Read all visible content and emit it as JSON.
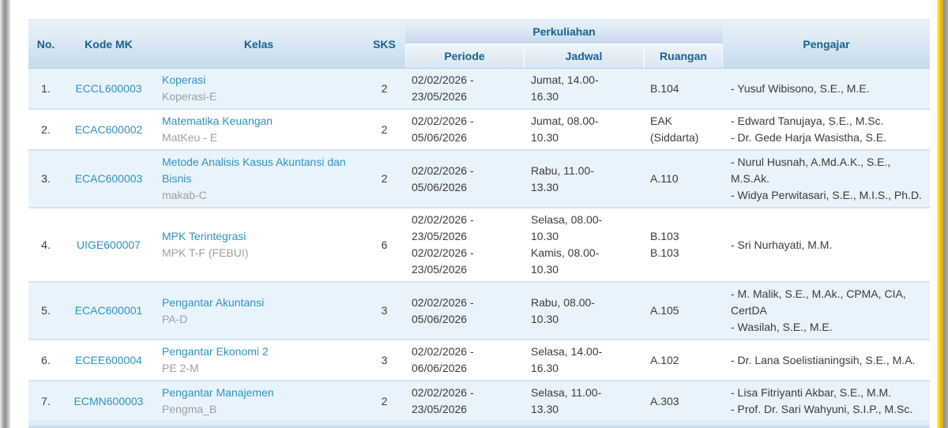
{
  "colors": {
    "header_text": "#17618f",
    "link": "#2d93c8",
    "row_alt_bg": "#e9f3fb",
    "right_accent_stripe": "#f3c403"
  },
  "table": {
    "header": {
      "no": "No.",
      "kode_mk": "Kode MK",
      "kelas": "Kelas",
      "sks": "SKS",
      "perkuliahan": "Perkuliahan",
      "periode": "Periode",
      "jadwal": "Jadwal",
      "ruangan": "Ruangan",
      "pengajar": "Pengajar"
    },
    "rows": [
      {
        "no": "1.",
        "kode": "ECCL600003",
        "nama": "Koperasi",
        "kelas": "Koperasi-E",
        "sks": "2",
        "periode": [
          "02/02/2026 - 23/05/2026"
        ],
        "jadwal": [
          "Jumat, 14.00-16.30"
        ],
        "ruangan": [
          "B.104"
        ],
        "pengajar": [
          "- Yusuf Wibisono, S.E., M.E."
        ]
      },
      {
        "no": "2.",
        "kode": "ECAC600002",
        "nama": "Matematika Keuangan",
        "kelas": "MatKeu - E",
        "sks": "2",
        "periode": [
          "02/02/2026 - 05/06/2026"
        ],
        "jadwal": [
          "Jumat, 08.00-10.30"
        ],
        "ruangan": [
          "EAK",
          "(Siddarta)"
        ],
        "pengajar": [
          "- Edward Tanujaya, S.E., M.Sc.",
          "- Dr. Gede Harja Wasistha, S.E."
        ]
      },
      {
        "no": "3.",
        "kode": "ECAC600003",
        "nama": "Metode Analisis Kasus Akuntansi dan Bisnis",
        "kelas": "makab-C",
        "sks": "2",
        "periode": [
          "02/02/2026 - 05/06/2026"
        ],
        "jadwal": [
          "Rabu, 11.00-13.30"
        ],
        "ruangan": [
          "A.110"
        ],
        "pengajar": [
          "- Nurul Husnah, A.Md.A.K., S.E., M.S.Ak.",
          "- Widya Perwitasari, S.E., M.I.S., Ph.D."
        ]
      },
      {
        "no": "4.",
        "kode": "UIGE600007",
        "nama": "MPK Terintegrasi",
        "kelas": "MPK T-F (FEBUI)",
        "sks": "6",
        "periode": [
          "02/02/2026 - 23/05/2026",
          "02/02/2026 - 23/05/2026"
        ],
        "jadwal": [
          "Selasa, 08.00-10.30",
          "Kamis, 08.00-10.30"
        ],
        "ruangan": [
          "B.103",
          "B.103"
        ],
        "pengajar": [
          "- Sri Nurhayati, M.M."
        ]
      },
      {
        "no": "5.",
        "kode": "ECAC600001",
        "nama": "Pengantar Akuntansi",
        "kelas": "PA-D",
        "sks": "3",
        "periode": [
          "02/02/2026 - 05/06/2026"
        ],
        "jadwal": [
          "Rabu, 08.00-10.30"
        ],
        "ruangan": [
          "A.105"
        ],
        "pengajar": [
          "- M. Malik, S.E., M.Ak., CPMA, CIA, CertDA",
          "- Wasilah, S.E., M.E."
        ]
      },
      {
        "no": "6.",
        "kode": "ECEE600004",
        "nama": "Pengantar Ekonomi 2",
        "kelas": "PE 2-M",
        "sks": "3",
        "periode": [
          "02/02/2026 - 06/06/2026"
        ],
        "jadwal": [
          "Selasa, 14.00-16.30"
        ],
        "ruangan": [
          "A.102"
        ],
        "pengajar": [
          "- Dr. Lana Soelistianingsih, S.E., M.A."
        ]
      },
      {
        "no": "7.",
        "kode": "ECMN600003",
        "nama": "Pengantar Manajemen",
        "kelas": "Pengma_B",
        "sks": "2",
        "periode": [
          "02/02/2026 - 23/05/2026"
        ],
        "jadwal": [
          "Selasa, 11.00-13.30"
        ],
        "ruangan": [
          "A.303"
        ],
        "pengajar": [
          "- Lisa Fitriyanti Akbar, S.E., M.M.",
          "- Prof. Dr. Sari Wahyuni, S.I.P., M.Sc."
        ]
      }
    ]
  }
}
